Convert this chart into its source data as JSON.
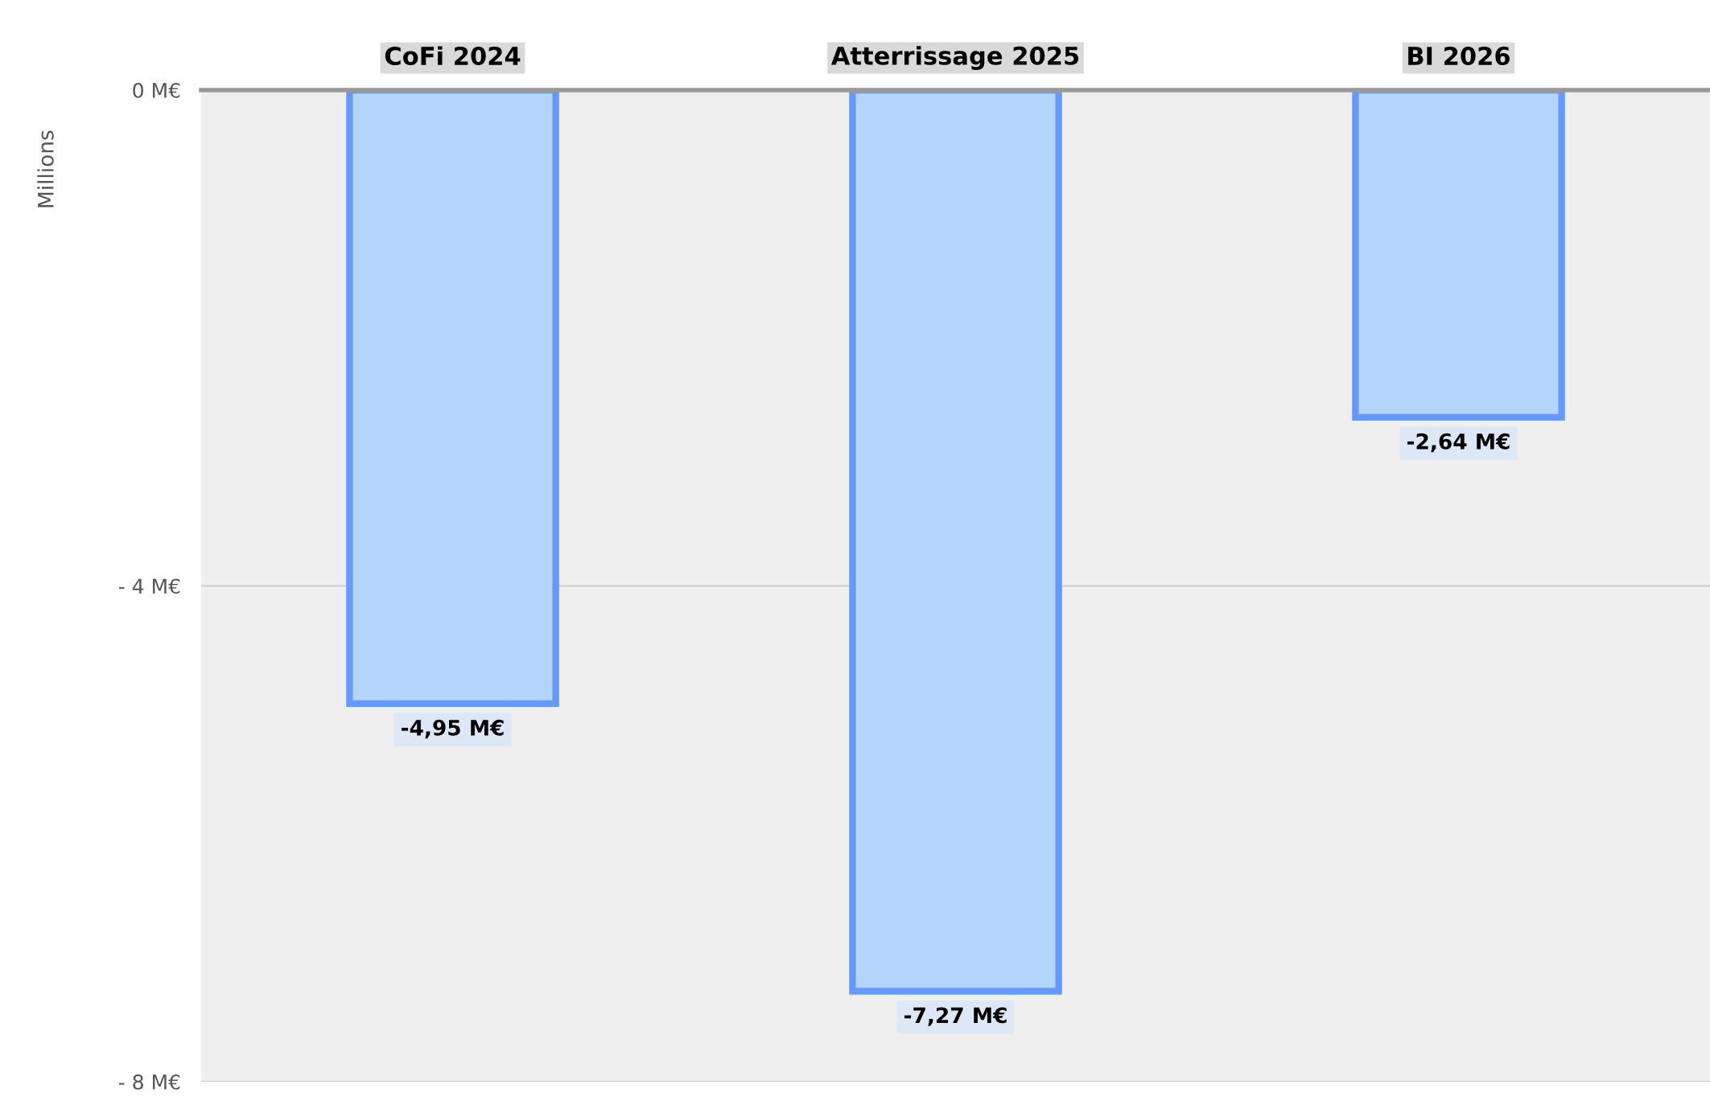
{
  "chart_data": {
    "type": "bar",
    "ylabel": "Millions",
    "categories": [
      "CoFi 2024",
      "Atterrissage 2025",
      "BI 2026"
    ],
    "values": [
      -4.95,
      -7.27,
      -2.64
    ],
    "value_labels": [
      "-4,95 M€",
      "-7,27 M€",
      "-2,64 M€"
    ],
    "color": "#b3d5fc",
    "ylim": [
      -8,
      0
    ],
    "yticks": [
      {
        "value": 0,
        "label": "0 M€"
      },
      {
        "value": -4,
        "label": "- 4 M€"
      },
      {
        "value": -8,
        "label": "- 8 M€"
      }
    ],
    "grid": "y",
    "legend": false
  }
}
